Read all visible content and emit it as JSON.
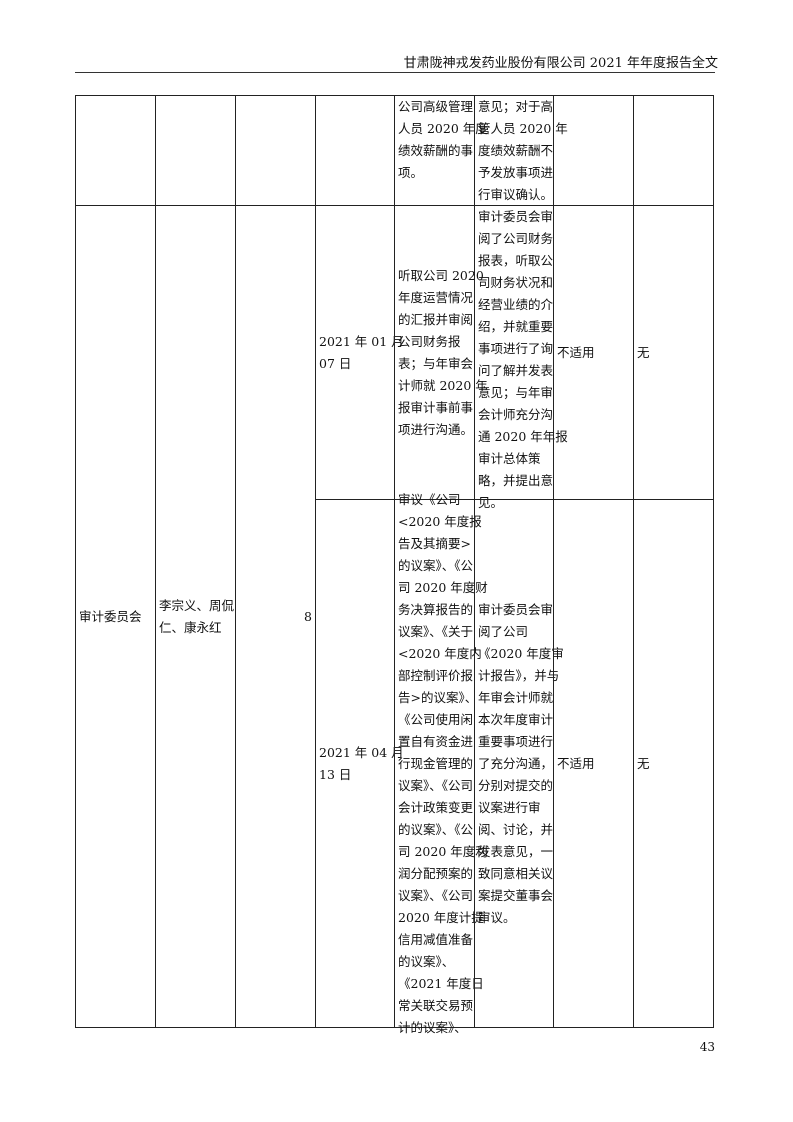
{
  "header": {
    "title": "甘肃陇神戎发药业股份有限公司 2021 年年度报告全文"
  },
  "page_number": "43",
  "rows": [
    {
      "committee": [],
      "members": [],
      "count": [],
      "date": [],
      "content": [
        "公司高级管理",
        "人员 2020 年度",
        "绩效薪酬的事",
        "项。"
      ],
      "opinion": [
        "意见；对于高",
        "管人员 2020 年",
        "度绩效薪酬不",
        "予发放事项进",
        "行审议确认。"
      ],
      "other": [],
      "objection": []
    },
    {
      "date": [
        "2021 年 01 月",
        "07 日"
      ],
      "content": [
        "听取公司 2020",
        "年度运营情况",
        "的汇报并审阅",
        "公司财务报",
        "表；与年审会",
        "计师就 2020 年",
        "报审计事前事",
        "项进行沟通。"
      ],
      "opinion": [
        "审计委员会审",
        "阅了公司财务",
        "报表，听取公",
        "司财务状况和",
        "经营业绩的介",
        "绍，并就重要",
        "事项进行了询",
        "问了解并发表",
        "意见；与年审",
        "会计师充分沟",
        "通 2020 年年报",
        "审计总体策",
        "略，并提出意",
        "见。"
      ],
      "other": [
        "不适用"
      ],
      "objection": [
        "无"
      ]
    },
    {
      "date": [
        "2021 年 04 月",
        "13 日"
      ],
      "content": [
        "审议《公司",
        "<2020 年度报",
        "告及其摘要>",
        "的议案》、《公",
        "司 2020 年度财",
        "务决算报告的",
        "议案》、《关于",
        "<2020 年度内",
        "部控制评价报",
        "告>的议案》、",
        "《公司使用闲",
        "置自有资金进",
        "行现金管理的",
        "议案》、《公司",
        "会计政策变更",
        "的议案》、《公",
        "司 2020 年度利",
        "润分配预案的",
        "议案》、《公司",
        "2020 年度计提",
        "信用减值准备",
        "的议案》、",
        "《2021 年度日",
        "常关联交易预",
        "计的议案》、"
      ],
      "opinion": [
        "审计委员会审",
        "阅了公司",
        "《2020 年度审",
        "计报告》，并与",
        "年审会计师就",
        "本次年度审计",
        "重要事项进行",
        "了充分沟通，",
        "分别对提交的",
        "议案进行审",
        "阅、讨论，并",
        "发表意见，一",
        "致同意相关议",
        "案提交董事会",
        "审议。"
      ],
      "other": [
        "不适用"
      ],
      "objection": [
        "无"
      ]
    }
  ],
  "group": {
    "committee": [
      "审计委员会"
    ],
    "members": [
      "李宗义、周侃",
      "仁、康永红"
    ],
    "count": [
      "8"
    ]
  }
}
